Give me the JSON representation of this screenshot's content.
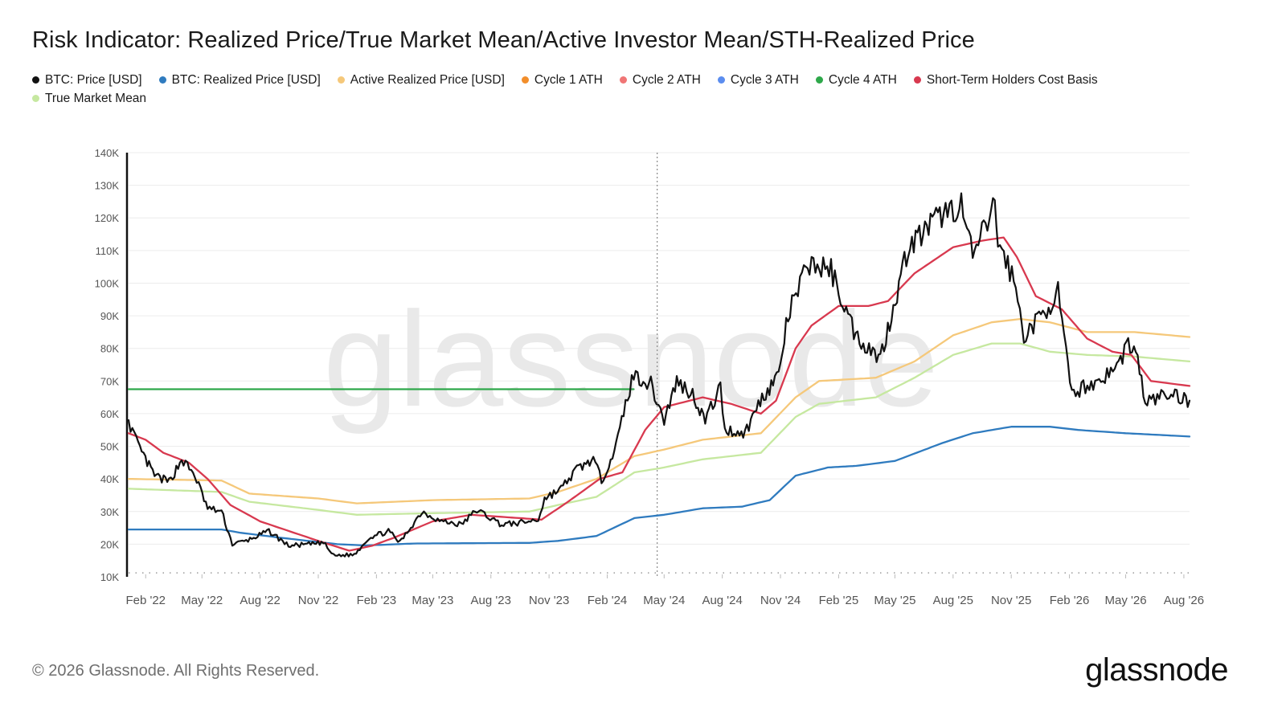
{
  "chart_data": {
    "type": "line",
    "title": "Risk Indicator: Realized Price/True Market Mean/Active Investor Mean/STH-Realized Price",
    "watermark": "glassnode",
    "y_ticks": [
      "10K",
      "20K",
      "30K",
      "40K",
      "50K",
      "60K",
      "70K",
      "80K",
      "90K",
      "100K",
      "110K",
      "120K",
      "130K",
      "140K"
    ],
    "ylim": [
      10000,
      140000
    ],
    "x_ticks": [
      "Feb '22",
      "May '22",
      "Aug '22",
      "Nov '22",
      "Feb '23",
      "May '23",
      "Aug '23",
      "Nov '23",
      "Feb '24",
      "May '24",
      "Aug '24",
      "Nov '24",
      "Feb '25",
      "May '25",
      "Aug '25",
      "Nov '25",
      "Feb '26",
      "May '26",
      "Aug '26"
    ],
    "x_tick_dates": [
      "2022-02-01",
      "2022-05-01",
      "2022-08-01",
      "2022-11-01",
      "2023-02-01",
      "2023-05-01",
      "2023-08-01",
      "2023-11-01",
      "2024-02-01",
      "2024-05-01",
      "2024-08-01",
      "2024-11-01",
      "2025-02-01",
      "2025-05-01",
      "2025-08-01",
      "2025-11-01",
      "2026-02-01",
      "2026-05-01",
      "2026-08-01"
    ],
    "xlim": [
      "2022-01-05",
      "2026-08-10"
    ],
    "marker_date": "2024-04-20",
    "legend_position": "top-left",
    "series": [
      {
        "name": "BTC: Price [USD]",
        "color": "#111111",
        "x": [
          "2022-01-05",
          "2022-01-20",
          "2022-02-15",
          "2022-03-10",
          "2022-03-30",
          "2022-04-20",
          "2022-05-10",
          "2022-06-01",
          "2022-06-18",
          "2022-07-10",
          "2022-08-15",
          "2022-09-15",
          "2022-10-20",
          "2022-11-09",
          "2022-11-25",
          "2022-12-28",
          "2023-01-20",
          "2023-02-20",
          "2023-03-10",
          "2023-04-14",
          "2023-05-15",
          "2023-06-15",
          "2023-07-10",
          "2023-08-18",
          "2023-09-15",
          "2023-10-15",
          "2023-10-25",
          "2023-11-20",
          "2023-12-15",
          "2024-01-10",
          "2024-01-23",
          "2024-02-15",
          "2024-03-01",
          "2024-03-14",
          "2024-04-10",
          "2024-05-01",
          "2024-05-21",
          "2024-06-15",
          "2024-07-05",
          "2024-07-29",
          "2024-08-05",
          "2024-09-06",
          "2024-09-30",
          "2024-10-29",
          "2024-11-13",
          "2024-12-05",
          "2024-12-17",
          "2025-01-20",
          "2025-02-28",
          "2025-04-08",
          "2025-05-22",
          "2025-07-14",
          "2025-08-14",
          "2025-09-01",
          "2025-10-06",
          "2025-10-11",
          "2025-11-05",
          "2025-11-21",
          "2025-12-15",
          "2026-01-14",
          "2026-02-05",
          "2026-02-20",
          "2026-03-20",
          "2026-04-20",
          "2026-05-05",
          "2026-05-20",
          "2026-06-01",
          "2026-06-20",
          "2026-07-15",
          "2026-08-10"
        ],
        "values": [
          58000,
          50000,
          41000,
          39000,
          46000,
          41000,
          31000,
          30000,
          20000,
          21000,
          24000,
          19500,
          20000,
          20500,
          16500,
          16800,
          22000,
          24000,
          20500,
          30000,
          27000,
          26000,
          30500,
          26000,
          26500,
          27500,
          34000,
          37000,
          43000,
          46000,
          39500,
          50000,
          63000,
          72000,
          69000,
          58000,
          70000,
          66000,
          58000,
          68000,
          55000,
          54000,
          64000,
          72000,
          90000,
          101000,
          106000,
          104000,
          84000,
          77000,
          111000,
          121000,
          124000,
          108000,
          124000,
          113000,
          101000,
          84000,
          89000,
          97000,
          65000,
          68000,
          70000,
          75000,
          82000,
          77000,
          63000,
          65000,
          66000,
          64000
        ]
      },
      {
        "name": "BTC: Realized Price [USD]",
        "color": "#2f7bbf",
        "x": [
          "2022-01-05",
          "2022-06-01",
          "2022-07-01",
          "2022-09-01",
          "2022-12-01",
          "2023-01-15",
          "2023-04-01",
          "2023-10-01",
          "2023-11-15",
          "2024-01-15",
          "2024-03-15",
          "2024-05-01",
          "2024-07-01",
          "2024-09-01",
          "2024-10-15",
          "2024-11-25",
          "2025-01-15",
          "2025-03-01",
          "2025-05-01",
          "2025-07-15",
          "2025-09-01",
          "2025-11-01",
          "2026-01-01",
          "2026-02-15",
          "2026-05-01",
          "2026-08-10"
        ],
        "values": [
          24500,
          24500,
          23500,
          22000,
          20000,
          19600,
          20200,
          20400,
          21000,
          22500,
          28000,
          29000,
          31000,
          31500,
          33500,
          41000,
          43500,
          44000,
          45500,
          51000,
          54000,
          56000,
          56000,
          55000,
          54000,
          53000
        ]
      },
      {
        "name": "Active Realized Price [USD]",
        "color": "#f5c87a",
        "x": [
          "2022-01-05",
          "2022-06-01",
          "2022-07-15",
          "2022-11-01",
          "2023-01-01",
          "2023-05-01",
          "2023-10-01",
          "2023-11-15",
          "2024-01-15",
          "2024-03-15",
          "2024-05-01",
          "2024-07-01",
          "2024-10-01",
          "2024-11-25",
          "2025-01-01",
          "2025-04-01",
          "2025-06-01",
          "2025-08-01",
          "2025-10-01",
          "2025-11-15",
          "2026-01-01",
          "2026-03-01",
          "2026-05-15",
          "2026-08-10"
        ],
        "values": [
          40000,
          39500,
          35500,
          34000,
          32500,
          33500,
          34000,
          36000,
          40000,
          47000,
          49000,
          52000,
          54000,
          65000,
          70000,
          71000,
          76000,
          84000,
          88000,
          89000,
          88000,
          85000,
          85000,
          83500
        ]
      },
      {
        "name": "Cycle 1 ATH",
        "color": "#f28e2b",
        "x": [],
        "values": []
      },
      {
        "name": "Cycle 2 ATH",
        "color": "#f07575",
        "x": [],
        "values": []
      },
      {
        "name": "Cycle 3 ATH",
        "color": "#5b8def",
        "x": [],
        "values": []
      },
      {
        "name": "Cycle 4 ATH",
        "color": "#2ea84a",
        "x": [
          "2022-01-05",
          "2024-03-14"
        ],
        "values": [
          67500,
          67500
        ]
      },
      {
        "name": "Short-Term Holders Cost Basis",
        "color": "#d8394f",
        "x": [
          "2022-01-05",
          "2022-02-01",
          "2022-03-01",
          "2022-04-10",
          "2022-05-10",
          "2022-06-15",
          "2022-08-01",
          "2022-11-01",
          "2022-12-20",
          "2023-01-25",
          "2023-03-01",
          "2023-05-01",
          "2023-07-01",
          "2023-09-15",
          "2023-10-20",
          "2023-12-01",
          "2024-01-20",
          "2024-02-25",
          "2024-04-01",
          "2024-05-01",
          "2024-07-01",
          "2024-08-15",
          "2024-10-01",
          "2024-10-25",
          "2024-11-25",
          "2024-12-20",
          "2025-02-01",
          "2025-03-20",
          "2025-04-20",
          "2025-06-01",
          "2025-08-01",
          "2025-09-15",
          "2025-10-20",
          "2025-11-10",
          "2025-12-10",
          "2026-01-20",
          "2026-03-01",
          "2026-04-10",
          "2026-05-10",
          "2026-06-10",
          "2026-08-10"
        ],
        "values": [
          54000,
          52000,
          48000,
          45000,
          40000,
          32000,
          27000,
          21000,
          18000,
          19500,
          22000,
          27000,
          29000,
          28000,
          27500,
          33000,
          40000,
          42000,
          55000,
          62000,
          65000,
          63000,
          60000,
          64000,
          80000,
          87000,
          93000,
          93000,
          94500,
          103000,
          111000,
          113000,
          114000,
          108000,
          96000,
          92000,
          83000,
          79000,
          78000,
          70000,
          68500
        ]
      },
      {
        "name": "True Market Mean",
        "color": "#c6e8a0",
        "x": [
          "2022-01-05",
          "2022-06-01",
          "2022-07-15",
          "2022-11-01",
          "2023-01-01",
          "2023-05-01",
          "2023-10-01",
          "2023-11-15",
          "2024-01-15",
          "2024-03-15",
          "2024-05-01",
          "2024-07-01",
          "2024-10-01",
          "2024-11-25",
          "2025-01-01",
          "2025-04-01",
          "2025-06-01",
          "2025-08-01",
          "2025-10-01",
          "2025-11-15",
          "2026-01-01",
          "2026-03-01",
          "2026-05-15",
          "2026-08-10"
        ],
        "values": [
          37000,
          36000,
          33000,
          30500,
          29000,
          29500,
          30000,
          32000,
          34500,
          42000,
          43500,
          46000,
          48000,
          59000,
          63000,
          65000,
          71000,
          78000,
          81500,
          81500,
          79000,
          78000,
          77500,
          76000
        ]
      }
    ]
  },
  "footer": {
    "copyright": "© 2026 Glassnode. All Rights Reserved.",
    "logo_text": "glassnode"
  }
}
